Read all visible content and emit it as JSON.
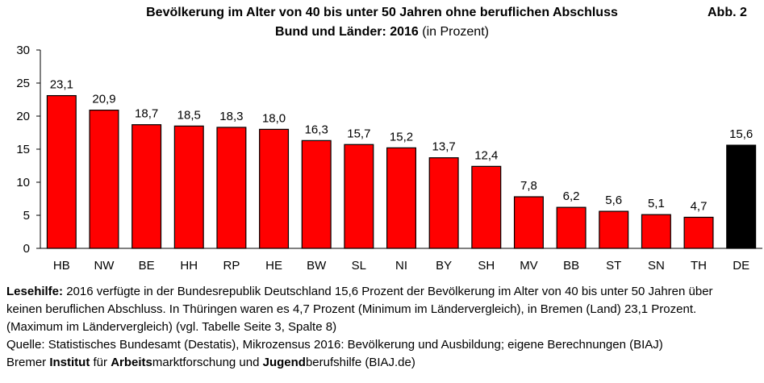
{
  "figure_label": "Abb. 2",
  "title_line1": "Bevölkerung im Alter von 40 bis unter 50 Jahren ohne beruflichen Abschluss",
  "title_line2_bold": "Bund und Länder: 2016",
  "title_line2_rest": " (in Prozent)",
  "chart_data": {
    "type": "bar",
    "title": "Bevölkerung im Alter von 40 bis unter 50 Jahren ohne beruflichen Abschluss – Bund und Länder: 2016 (in Prozent)",
    "xlabel": "",
    "ylabel": "",
    "ylim": [
      0,
      30
    ],
    "yticks": [
      "0",
      "5",
      "10",
      "15",
      "20",
      "25",
      "30"
    ],
    "categories": [
      "HB",
      "NW",
      "BE",
      "HH",
      "RP",
      "HE",
      "BW",
      "SL",
      "NI",
      "BY",
      "SH",
      "MV",
      "BB",
      "ST",
      "SN",
      "TH",
      "DE"
    ],
    "values": [
      23.1,
      20.9,
      18.7,
      18.5,
      18.3,
      18.0,
      16.3,
      15.7,
      15.2,
      13.7,
      12.4,
      7.8,
      6.2,
      5.6,
      5.1,
      4.7,
      15.6
    ],
    "value_labels": [
      "23,1",
      "20,9",
      "18,7",
      "18,5",
      "18,3",
      "18,0",
      "16,3",
      "15,7",
      "15,2",
      "13,7",
      "12,4",
      "7,8",
      "6,2",
      "5,6",
      "5,1",
      "4,7",
      "15,6"
    ],
    "colors": {
      "laender": "#ff0000",
      "bund": "#000000",
      "outline": "#000000"
    }
  },
  "notes": {
    "lesehilfe_label": "Lesehilfe:",
    "lesehilfe_line1": " 2016 verfügte in der Bundesrepublik Deutschland 15,6 Prozent der Bevölkerung im Alter von 40 bis unter 50 Jahren über",
    "lesehilfe_line2": "keinen beruflichen Abschluss. In Thüringen waren es 4,7 Prozent (Minimum im Ländervergleich), in Bremen (Land) 23,1 Prozent.",
    "lesehilfe_line3": "(Maximum im Ländervergleich) (vgl. Tabelle Seite 3, Spalte 8)",
    "quelle": "Quelle: Statistisches Bundesamt (Destatis), Mikrozensus 2016: Bevölkerung und Ausbildung; eigene Berechnungen (BIAJ)",
    "biaj_parts": [
      "Bremer ",
      "Institut",
      " für ",
      "Arbeits",
      "marktforschung und ",
      "Jugend",
      "berufshilfe (BIAJ.de)"
    ]
  }
}
